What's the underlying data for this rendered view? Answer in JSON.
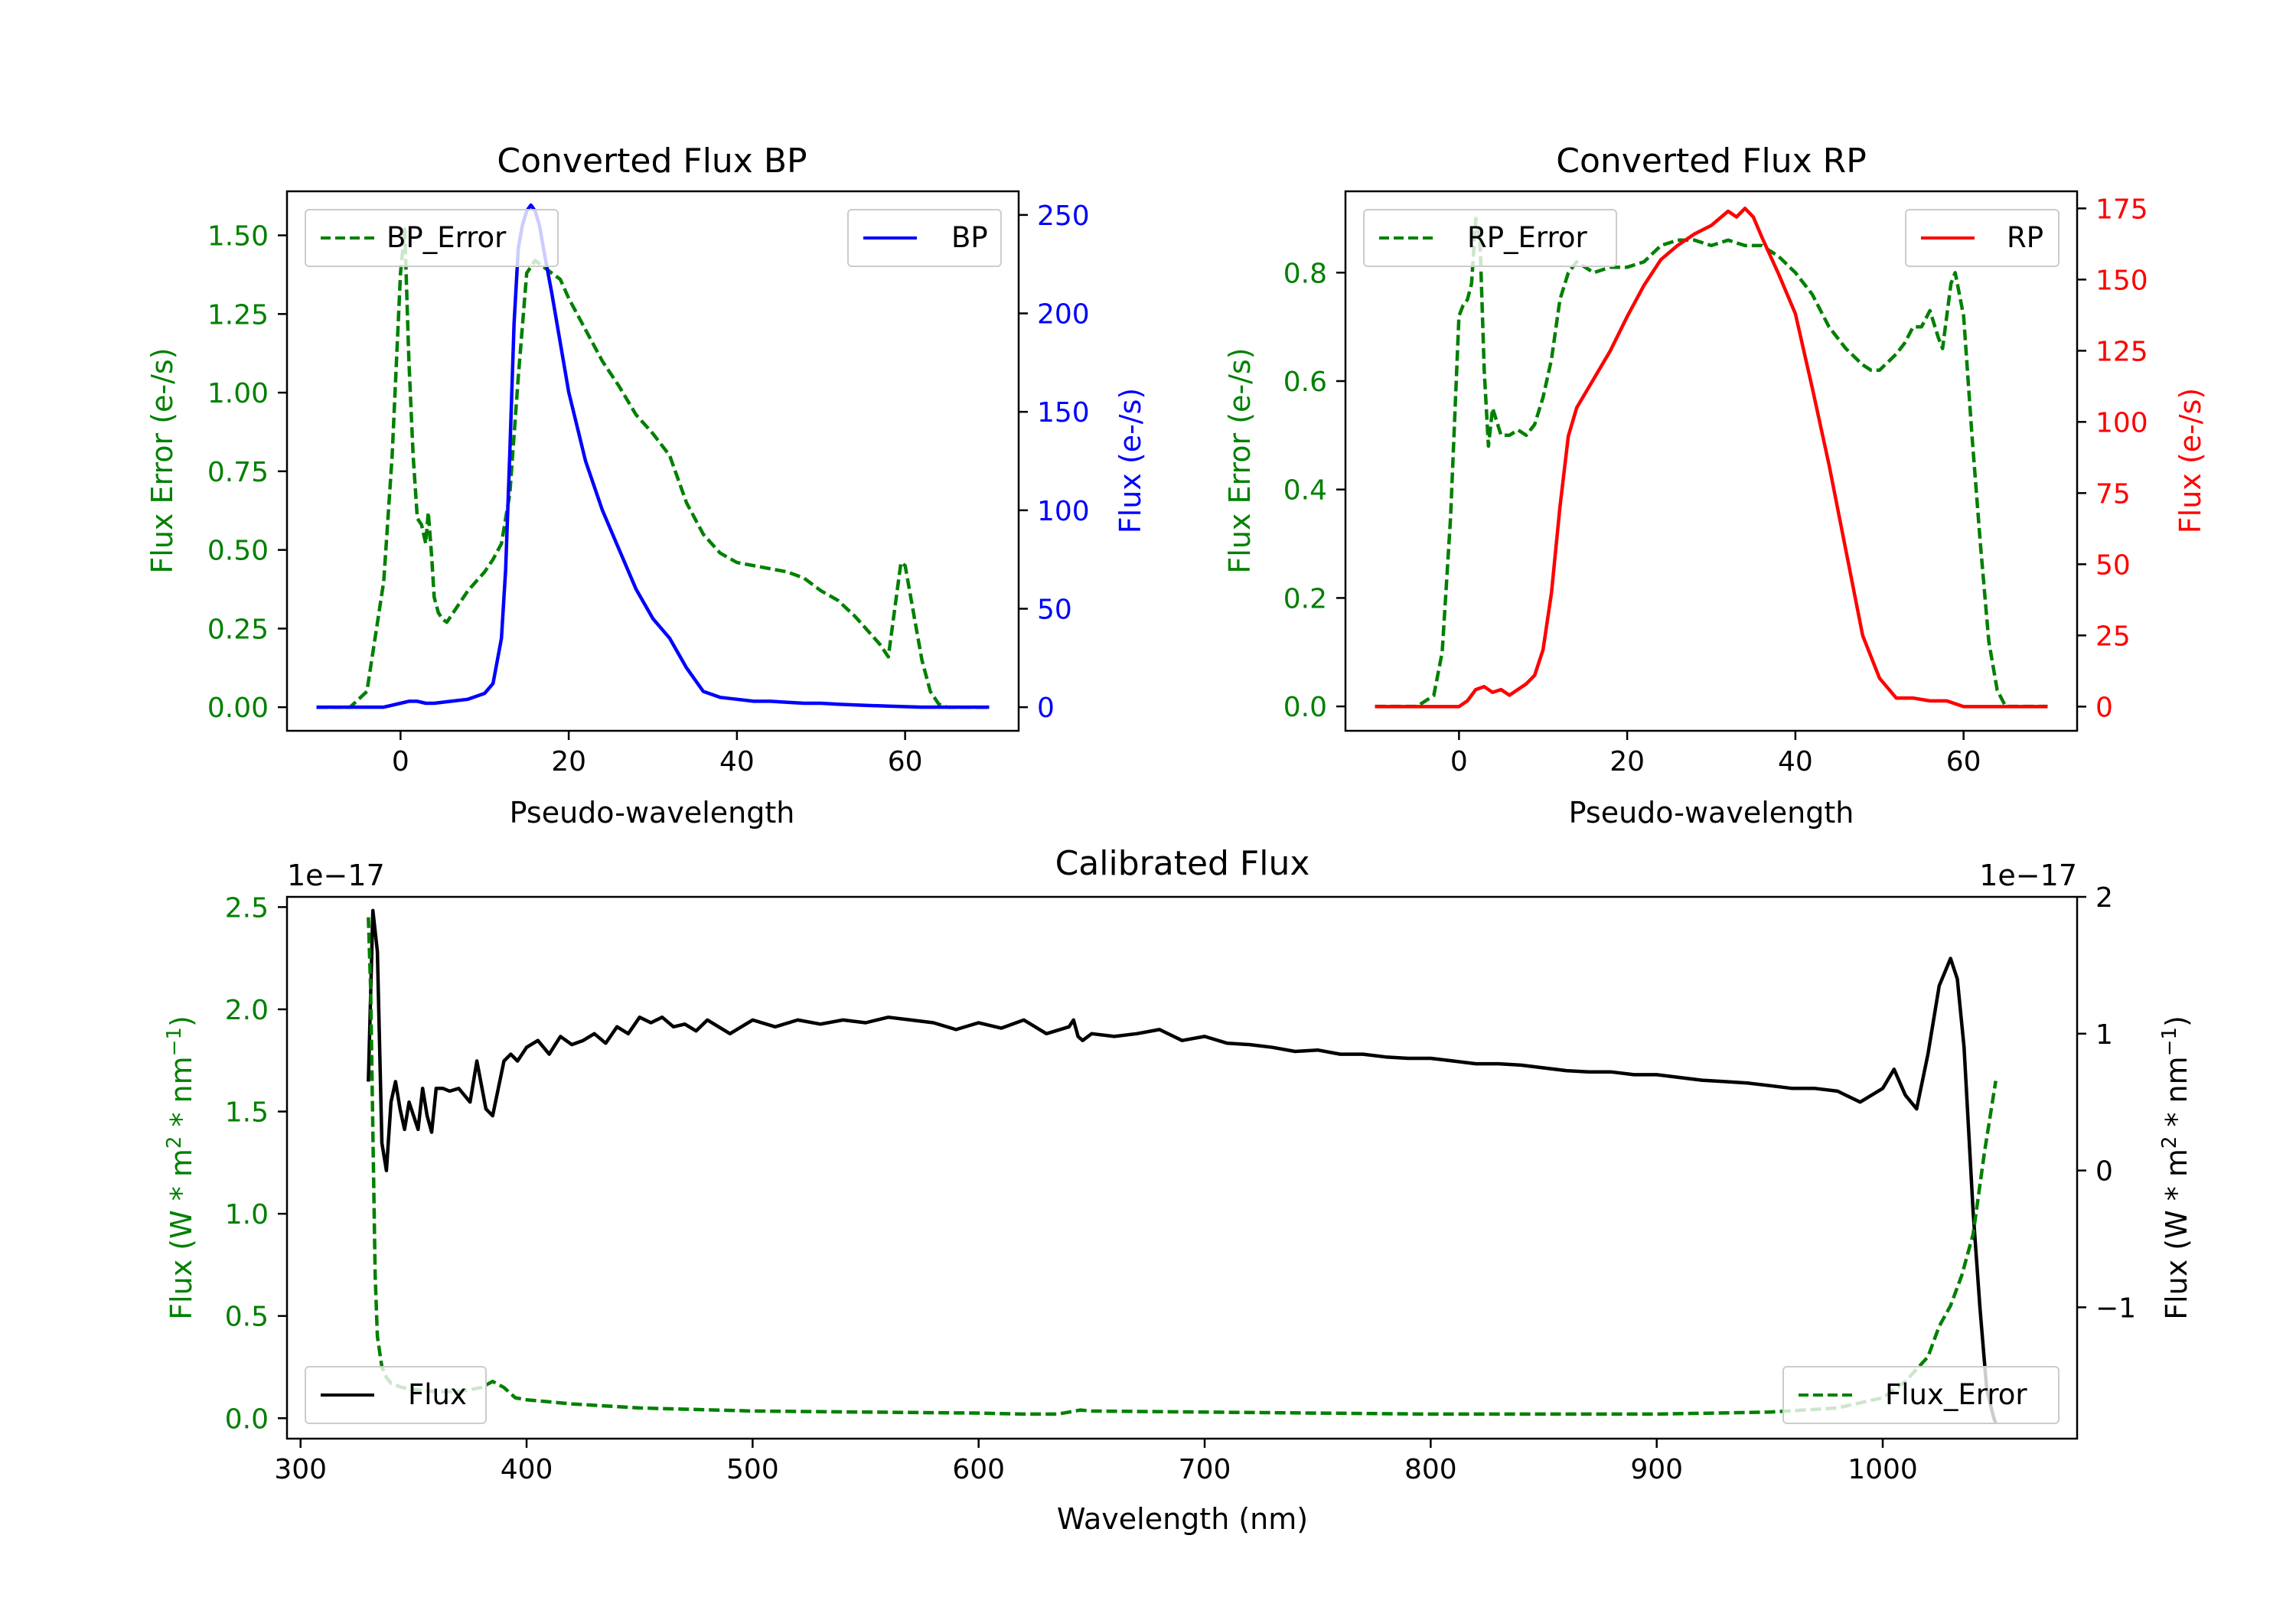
{
  "colors": {
    "green": "#008000",
    "blue": "#0000ff",
    "red": "#ff0000",
    "black": "#000000"
  },
  "chart_data": [
    {
      "id": "bp",
      "type": "line",
      "title": "Converted Flux BP",
      "xlabel": "Pseudo-wavelength",
      "xlim": [
        -13.5,
        73.5
      ],
      "xticks": [
        0,
        20,
        40,
        60
      ],
      "y_left": {
        "label": "Flux Error (e-/s)",
        "color": "green",
        "lim": [
          -0.075,
          1.64
        ],
        "ticks": [
          0.0,
          0.25,
          0.5,
          0.75,
          1.0,
          1.25,
          1.5
        ],
        "tick_labels": [
          "0.00",
          "0.25",
          "0.50",
          "0.75",
          "1.00",
          "1.25",
          "1.50"
        ]
      },
      "y_right": {
        "label": "Flux (e-/s)",
        "color": "blue",
        "lim": [
          -12,
          262
        ],
        "ticks": [
          0,
          50,
          100,
          150,
          200,
          250
        ],
        "tick_labels": [
          "0",
          "50",
          "100",
          "150",
          "200",
          "250"
        ]
      },
      "series": [
        {
          "name": "BP_Error",
          "axis": "left",
          "color": "green",
          "style": "dashed",
          "x": [
            -10,
            -6,
            -4,
            -2,
            -1,
            0,
            0.5,
            1,
            1.5,
            2,
            2.5,
            3,
            3.3,
            3.7,
            4,
            4.5,
            5,
            5.5,
            6,
            7,
            8,
            9,
            10,
            11,
            12,
            13,
            14,
            15,
            16,
            17,
            18,
            19,
            20,
            22,
            24,
            26,
            28,
            30,
            32,
            34,
            36,
            38,
            40,
            42,
            44,
            46,
            48,
            50,
            52,
            54,
            56,
            57,
            58,
            59,
            59.5,
            60,
            61,
            62,
            63,
            64,
            65,
            70
          ],
          "values": [
            0.0,
            0.0,
            0.05,
            0.4,
            0.8,
            1.38,
            1.52,
            1.1,
            0.8,
            0.6,
            0.58,
            0.52,
            0.62,
            0.48,
            0.35,
            0.3,
            0.28,
            0.27,
            0.29,
            0.33,
            0.37,
            0.4,
            0.43,
            0.47,
            0.52,
            0.68,
            1.05,
            1.38,
            1.42,
            1.4,
            1.38,
            1.36,
            1.3,
            1.2,
            1.1,
            1.02,
            0.93,
            0.87,
            0.8,
            0.65,
            0.55,
            0.49,
            0.46,
            0.45,
            0.44,
            0.43,
            0.41,
            0.37,
            0.34,
            0.29,
            0.23,
            0.2,
            0.16,
            0.36,
            0.46,
            0.45,
            0.3,
            0.15,
            0.05,
            0.01,
            0.0,
            0.0
          ]
        },
        {
          "name": "BP",
          "axis": "right",
          "color": "blue",
          "style": "solid",
          "x": [
            -10,
            -6,
            -4,
            -2,
            0,
            1,
            2,
            3,
            4,
            6,
            8,
            10,
            11,
            12,
            12.5,
            13,
            13.5,
            14,
            14.5,
            15,
            15.5,
            16,
            16.5,
            17,
            18,
            19,
            20,
            22,
            24,
            26,
            28,
            30,
            32,
            34,
            36,
            38,
            40,
            42,
            44,
            46,
            48,
            50,
            52,
            55,
            58,
            62,
            66,
            70
          ],
          "values": [
            0,
            0,
            0,
            0,
            2,
            3,
            3,
            2,
            2,
            3,
            4,
            7,
            12,
            35,
            70,
            130,
            195,
            233,
            245,
            252,
            255,
            252,
            245,
            233,
            210,
            185,
            160,
            125,
            100,
            80,
            60,
            45,
            35,
            20,
            8,
            5,
            4,
            3,
            3,
            2.5,
            2,
            2,
            1.5,
            1,
            0.5,
            0,
            0,
            0
          ]
        }
      ],
      "legends": [
        {
          "labels": [
            "BP_Error"
          ],
          "position": "upper left"
        },
        {
          "labels": [
            "BP"
          ],
          "position": "upper right"
        }
      ]
    },
    {
      "id": "rp",
      "type": "line",
      "title": "Converted Flux RP",
      "xlabel": "Pseudo-wavelength",
      "xlim": [
        -13.5,
        73.5
      ],
      "xticks": [
        0,
        20,
        40,
        60
      ],
      "y_left": {
        "label": "Flux Error (e-/s)",
        "color": "green",
        "lim": [
          -0.045,
          0.95
        ],
        "ticks": [
          0.0,
          0.2,
          0.4,
          0.6,
          0.8
        ],
        "tick_labels": [
          "0.0",
          "0.2",
          "0.4",
          "0.6",
          "0.8"
        ]
      },
      "y_right": {
        "label": "Flux (e-/s)",
        "color": "red",
        "lim": [
          -8.5,
          181
        ],
        "ticks": [
          0,
          25,
          50,
          75,
          100,
          125,
          150,
          175
        ],
        "tick_labels": [
          "0",
          "25",
          "50",
          "75",
          "100",
          "125",
          "150",
          "175"
        ]
      },
      "series": [
        {
          "name": "RP_Error",
          "axis": "left",
          "color": "green",
          "style": "dashed",
          "x": [
            -10,
            -5,
            -3,
            -2,
            -1,
            0,
            0.5,
            1,
            1.5,
            2,
            2.5,
            3,
            3.5,
            4,
            5,
            6,
            7,
            8,
            9,
            10,
            11,
            12,
            13,
            14,
            15,
            16,
            18,
            20,
            22,
            24,
            26,
            28,
            30,
            32,
            34,
            36,
            38,
            40,
            42,
            44,
            46,
            48,
            49,
            50,
            52,
            53,
            54,
            55,
            56,
            57,
            57.5,
            58,
            58.5,
            59,
            60,
            61,
            62,
            63,
            64,
            65,
            70
          ],
          "values": [
            0.0,
            0.0,
            0.02,
            0.1,
            0.35,
            0.72,
            0.74,
            0.75,
            0.78,
            0.9,
            0.86,
            0.62,
            0.48,
            0.55,
            0.5,
            0.5,
            0.51,
            0.5,
            0.52,
            0.57,
            0.64,
            0.75,
            0.8,
            0.82,
            0.81,
            0.8,
            0.81,
            0.81,
            0.82,
            0.85,
            0.86,
            0.86,
            0.85,
            0.86,
            0.85,
            0.85,
            0.83,
            0.8,
            0.76,
            0.7,
            0.66,
            0.63,
            0.62,
            0.62,
            0.65,
            0.67,
            0.7,
            0.7,
            0.73,
            0.68,
            0.66,
            0.72,
            0.78,
            0.8,
            0.72,
            0.5,
            0.3,
            0.12,
            0.03,
            0.0,
            0.0
          ]
        },
        {
          "name": "RP",
          "axis": "right",
          "color": "red",
          "style": "solid",
          "x": [
            -10,
            -6,
            -4,
            -2,
            0,
            1,
            2,
            3,
            4,
            5,
            6,
            8,
            9,
            10,
            11,
            12,
            13,
            14,
            15,
            16,
            18,
            20,
            22,
            24,
            26,
            28,
            30,
            32,
            33,
            34,
            35,
            36,
            38,
            40,
            42,
            44,
            46,
            48,
            50,
            52,
            54,
            56,
            58,
            60,
            62,
            66,
            70
          ],
          "values": [
            0,
            0,
            0,
            0,
            0,
            2,
            6,
            7,
            5,
            6,
            4,
            8,
            11,
            20,
            40,
            70,
            95,
            105,
            110,
            115,
            125,
            137,
            148,
            157,
            162,
            166,
            169,
            174,
            172,
            175,
            172,
            165,
            152,
            138,
            112,
            85,
            55,
            25,
            10,
            3,
            3,
            2,
            2,
            0,
            0,
            0,
            0
          ]
        }
      ],
      "legends": [
        {
          "labels": [
            "RP_Error"
          ],
          "position": "upper left"
        },
        {
          "labels": [
            "RP"
          ],
          "position": "upper right"
        }
      ]
    },
    {
      "id": "cal",
      "type": "line",
      "title": "Calibrated Flux",
      "xlabel": "Wavelength (nm)",
      "xlim": [
        294,
        1086
      ],
      "xticks": [
        300,
        400,
        500,
        600,
        700,
        800,
        900,
        1000
      ],
      "y_left": {
        "label_main": "Flux (W * m",
        "label_sup1": "2",
        "label_mid": " * nm",
        "label_sup2": "−1",
        "label_end": ")",
        "color": "green",
        "offset_text": "1e−17",
        "lim": [
          -0.1,
          2.55
        ],
        "ticks": [
          0.0,
          0.5,
          1.0,
          1.5,
          2.0,
          2.5
        ],
        "tick_labels": [
          "0.0",
          "0.5",
          "1.0",
          "1.5",
          "2.0",
          "2.5"
        ]
      },
      "y_right": {
        "label_main": "Flux (W * m",
        "label_sup1": "2",
        "label_mid": " * nm",
        "label_sup2": "−1",
        "label_end": ")",
        "color": "black",
        "offset_text": "1e−17",
        "lim": [
          -1.96,
          2.0
        ],
        "ticks": [
          -1,
          0,
          1,
          2
        ],
        "tick_labels": [
          "−1",
          "0",
          "1",
          "2"
        ]
      },
      "series": [
        {
          "name": "Flux",
          "axis": "right",
          "color": "black",
          "style": "solid",
          "x": [
            330,
            332,
            334,
            336,
            338,
            340,
            342,
            344,
            346,
            348,
            350,
            352,
            354,
            356,
            358,
            360,
            363,
            366,
            370,
            375,
            378,
            382,
            385,
            390,
            393,
            396,
            400,
            405,
            410,
            415,
            420,
            425,
            430,
            435,
            440,
            445,
            450,
            455,
            460,
            465,
            470,
            475,
            480,
            490,
            500,
            510,
            520,
            530,
            540,
            550,
            560,
            570,
            580,
            590,
            600,
            610,
            620,
            630,
            640,
            642,
            644,
            646,
            650,
            660,
            670,
            680,
            690,
            700,
            710,
            720,
            730,
            740,
            750,
            760,
            770,
            780,
            790,
            800,
            810,
            820,
            830,
            840,
            850,
            860,
            870,
            880,
            890,
            900,
            910,
            920,
            930,
            940,
            950,
            960,
            970,
            980,
            990,
            1000,
            1005,
            1010,
            1015,
            1020,
            1025,
            1030,
            1033,
            1036,
            1040,
            1043,
            1046,
            1049,
            1050
          ],
          "values": [
            0.65,
            1.9,
            1.6,
            0.2,
            0.0,
            0.5,
            0.65,
            0.45,
            0.3,
            0.5,
            0.4,
            0.3,
            0.6,
            0.4,
            0.28,
            0.6,
            0.6,
            0.58,
            0.6,
            0.5,
            0.8,
            0.45,
            0.4,
            0.8,
            0.85,
            0.8,
            0.9,
            0.95,
            0.85,
            0.98,
            0.92,
            0.95,
            1.0,
            0.93,
            1.05,
            1.0,
            1.12,
            1.08,
            1.12,
            1.05,
            1.07,
            1.02,
            1.1,
            1.0,
            1.1,
            1.05,
            1.1,
            1.07,
            1.1,
            1.08,
            1.12,
            1.1,
            1.08,
            1.03,
            1.08,
            1.04,
            1.1,
            1.0,
            1.05,
            1.1,
            0.98,
            0.95,
            1.0,
            0.98,
            1.0,
            1.03,
            0.95,
            0.98,
            0.93,
            0.92,
            0.9,
            0.87,
            0.88,
            0.85,
            0.85,
            0.83,
            0.82,
            0.82,
            0.8,
            0.78,
            0.78,
            0.77,
            0.75,
            0.73,
            0.72,
            0.72,
            0.7,
            0.7,
            0.68,
            0.66,
            0.65,
            0.64,
            0.62,
            0.6,
            0.6,
            0.58,
            0.5,
            0.6,
            0.74,
            0.55,
            0.45,
            0.85,
            1.35,
            1.55,
            1.4,
            0.9,
            -0.3,
            -1.0,
            -1.6,
            -1.8,
            -1.85
          ]
        },
        {
          "name": "Flux_Error",
          "axis": "left",
          "color": "green",
          "style": "dashed",
          "x": [
            330,
            331,
            332,
            333,
            334,
            336,
            338,
            340,
            345,
            350,
            360,
            370,
            380,
            385,
            390,
            395,
            400,
            420,
            450,
            500,
            550,
            600,
            620,
            630,
            635,
            640,
            645,
            650,
            700,
            800,
            900,
            950,
            980,
            1000,
            1010,
            1020,
            1025,
            1030,
            1035,
            1040,
            1045,
            1050
          ],
          "values": [
            2.45,
            2.1,
            1.4,
            0.7,
            0.4,
            0.25,
            0.2,
            0.17,
            0.15,
            0.14,
            0.13,
            0.13,
            0.15,
            0.18,
            0.15,
            0.1,
            0.09,
            0.07,
            0.05,
            0.035,
            0.03,
            0.025,
            0.02,
            0.02,
            0.02,
            0.03,
            0.04,
            0.035,
            0.03,
            0.02,
            0.02,
            0.03,
            0.05,
            0.1,
            0.18,
            0.3,
            0.45,
            0.55,
            0.7,
            0.9,
            1.3,
            1.65
          ]
        }
      ],
      "legends": [
        {
          "labels": [
            "Flux"
          ],
          "position": "lower left"
        },
        {
          "labels": [
            "Flux_Error"
          ],
          "position": "lower right"
        }
      ]
    }
  ]
}
